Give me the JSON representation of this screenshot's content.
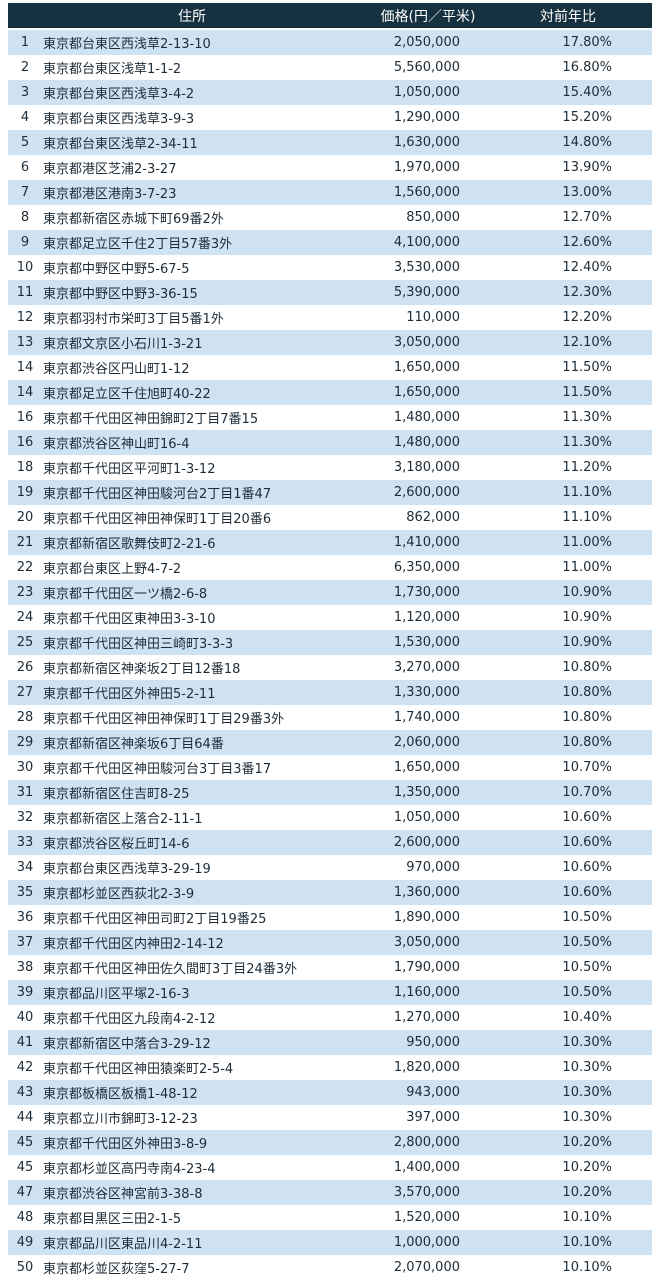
{
  "colors": {
    "header_background": "#16313f",
    "header_text": "#ffffff",
    "row_alt_background": "#cfe2f2",
    "row_background": "#ffffff",
    "body_text": "#1e2c38"
  },
  "header": {
    "rank": "",
    "address": "住所",
    "price": "価格(円／平米)",
    "yoy": "対前年比"
  },
  "chart_data": {
    "type": "table",
    "title": "",
    "columns": [
      "",
      "住所",
      "価格(円／平米)",
      "対前年比"
    ],
    "rows": [
      [
        "1",
        "東京都台東区西浅草2-13-10",
        "2,050,000",
        "17.80%"
      ],
      [
        "2",
        "東京都台東区浅草1-1-2",
        "5,560,000",
        "16.80%"
      ],
      [
        "3",
        "東京都台東区西浅草3-4-2",
        "1,050,000",
        "15.40%"
      ],
      [
        "4",
        "東京都台東区西浅草3-9-3",
        "1,290,000",
        "15.20%"
      ],
      [
        "5",
        "東京都台東区浅草2-34-11",
        "1,630,000",
        "14.80%"
      ],
      [
        "6",
        "東京都港区芝浦2-3-27",
        "1,970,000",
        "13.90%"
      ],
      [
        "7",
        "東京都港区港南3-7-23",
        "1,560,000",
        "13.00%"
      ],
      [
        "8",
        "東京都新宿区赤城下町69番2外",
        "850,000",
        "12.70%"
      ],
      [
        "9",
        "東京都足立区千住2丁目57番3外",
        "4,100,000",
        "12.60%"
      ],
      [
        "10",
        "東京都中野区中野5-67-5",
        "3,530,000",
        "12.40%"
      ],
      [
        "11",
        "東京都中野区中野3-36-15",
        "5,390,000",
        "12.30%"
      ],
      [
        "12",
        "東京都羽村市栄町3丁目5番1外",
        "110,000",
        "12.20%"
      ],
      [
        "13",
        "東京都文京区小石川1-3-21",
        "3,050,000",
        "12.10%"
      ],
      [
        "14",
        "東京都渋谷区円山町1-12",
        "1,650,000",
        "11.50%"
      ],
      [
        "14",
        "東京都足立区千住旭町40-22",
        "1,650,000",
        "11.50%"
      ],
      [
        "16",
        "東京都千代田区神田錦町2丁目7番15",
        "1,480,000",
        "11.30%"
      ],
      [
        "16",
        "東京都渋谷区神山町16-4",
        "1,480,000",
        "11.30%"
      ],
      [
        "18",
        "東京都千代田区平河町1-3-12",
        "3,180,000",
        "11.20%"
      ],
      [
        "19",
        "東京都千代田区神田駿河台2丁目1番47",
        "2,600,000",
        "11.10%"
      ],
      [
        "20",
        "東京都千代田区神田神保町1丁目20番6",
        "862,000",
        "11.10%"
      ],
      [
        "21",
        "東京都新宿区歌舞伎町2-21-6",
        "1,410,000",
        "11.00%"
      ],
      [
        "22",
        "東京都台東区上野4-7-2",
        "6,350,000",
        "11.00%"
      ],
      [
        "23",
        "東京都千代田区一ツ橋2-6-8",
        "1,730,000",
        "10.90%"
      ],
      [
        "24",
        "東京都千代田区東神田3-3-10",
        "1,120,000",
        "10.90%"
      ],
      [
        "25",
        "東京都千代田区神田三崎町3-3-3",
        "1,530,000",
        "10.90%"
      ],
      [
        "26",
        "東京都新宿区神楽坂2丁目12番18",
        "3,270,000",
        "10.80%"
      ],
      [
        "27",
        "東京都千代田区外神田5-2-11",
        "1,330,000",
        "10.80%"
      ],
      [
        "28",
        "東京都千代田区神田神保町1丁目29番3外",
        "1,740,000",
        "10.80%"
      ],
      [
        "29",
        "東京都新宿区神楽坂6丁目64番",
        "2,060,000",
        "10.80%"
      ],
      [
        "30",
        "東京都千代田区神田駿河台3丁目3番17",
        "1,650,000",
        "10.70%"
      ],
      [
        "31",
        "東京都新宿区住吉町8-25",
        "1,350,000",
        "10.70%"
      ],
      [
        "32",
        "東京都新宿区上落合2-11-1",
        "1,050,000",
        "10.60%"
      ],
      [
        "33",
        "東京都渋谷区桜丘町14-6",
        "2,600,000",
        "10.60%"
      ],
      [
        "34",
        "東京都台東区西浅草3-29-19",
        "970,000",
        "10.60%"
      ],
      [
        "35",
        "東京都杉並区西荻北2-3-9",
        "1,360,000",
        "10.60%"
      ],
      [
        "36",
        "東京都千代田区神田司町2丁目19番25",
        "1,890,000",
        "10.50%"
      ],
      [
        "37",
        "東京都千代田区内神田2-14-12",
        "3,050,000",
        "10.50%"
      ],
      [
        "38",
        "東京都千代田区神田佐久間町3丁目24番3外",
        "1,790,000",
        "10.50%"
      ],
      [
        "39",
        "東京都品川区平塚2-16-3",
        "1,160,000",
        "10.50%"
      ],
      [
        "40",
        "東京都千代田区九段南4-2-12",
        "1,270,000",
        "10.40%"
      ],
      [
        "41",
        "東京都新宿区中落合3-29-12",
        "950,000",
        "10.30%"
      ],
      [
        "42",
        "東京都千代田区神田猿楽町2-5-4",
        "1,820,000",
        "10.30%"
      ],
      [
        "43",
        "東京都板橋区板橋1-48-12",
        "943,000",
        "10.30%"
      ],
      [
        "44",
        "東京都立川市錦町3-12-23",
        "397,000",
        "10.30%"
      ],
      [
        "45",
        "東京都千代田区外神田3-8-9",
        "2,800,000",
        "10.20%"
      ],
      [
        "45",
        "東京都杉並区高円寺南4-23-4",
        "1,400,000",
        "10.20%"
      ],
      [
        "47",
        "東京都渋谷区神宮前3-38-8",
        "3,570,000",
        "10.20%"
      ],
      [
        "48",
        "東京都目黒区三田2-1-5",
        "1,520,000",
        "10.10%"
      ],
      [
        "49",
        "東京都品川区東品川4-2-11",
        "1,000,000",
        "10.10%"
      ],
      [
        "50",
        "東京都杉並区荻窪5-27-7",
        "2,070,000",
        "10.10%"
      ]
    ]
  }
}
